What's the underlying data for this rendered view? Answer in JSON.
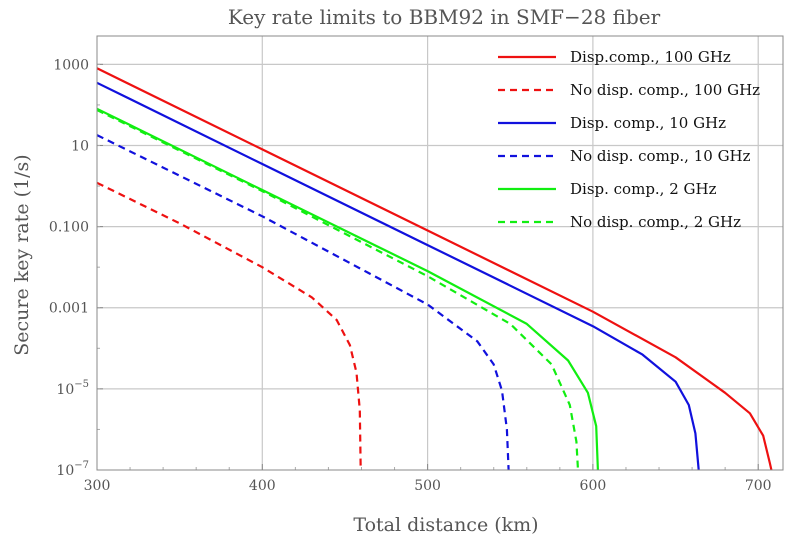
{
  "chart_data": {
    "type": "line",
    "title": "Key rate limits to BBM92 in SMF−28 fiber",
    "xlabel": "Total distance (km)",
    "ylabel": "Secure key rate (1/s)",
    "xlim": [
      300,
      715
    ],
    "ylim": [
      1e-07,
      5000
    ],
    "y_scale": "log",
    "grid": true,
    "legend_position": "top-right",
    "x_ticks": [
      {
        "value": 300,
        "label": "300"
      },
      {
        "value": 400,
        "label": "400"
      },
      {
        "value": 500,
        "label": "500"
      },
      {
        "value": 600,
        "label": "600"
      },
      {
        "value": 700,
        "label": "700"
      }
    ],
    "y_ticks": [
      {
        "value": 1000,
        "base": "1000",
        "exp": ""
      },
      {
        "value": 10,
        "base": "10",
        "exp": ""
      },
      {
        "value": 0.1,
        "base": "0.100",
        "exp": ""
      },
      {
        "value": 0.001,
        "base": "0.001",
        "exp": ""
      },
      {
        "value": 1e-05,
        "base": "10",
        "exp": "−5"
      },
      {
        "value": 1e-07,
        "base": "10",
        "exp": "−7"
      }
    ],
    "series": [
      {
        "name": "Disp.comp., 100 GHz",
        "color": "#ee1111",
        "dash": false,
        "points": [
          [
            300,
            800
          ],
          [
            400,
            8
          ],
          [
            500,
            0.08
          ],
          [
            600,
            0.0008
          ],
          [
            650,
            6e-05
          ],
          [
            680,
            8e-06
          ],
          [
            695,
            2.5e-06
          ],
          [
            703,
            7e-07
          ],
          [
            707,
            1.5e-07
          ],
          [
            708,
            1e-07
          ]
        ]
      },
      {
        "name": "No disp. comp., 100 GHz",
        "color": "#ee1111",
        "dash": true,
        "points": [
          [
            300,
            1.2
          ],
          [
            350,
            0.12
          ],
          [
            400,
            0.01
          ],
          [
            430,
            0.0018
          ],
          [
            445,
            0.0005
          ],
          [
            453,
            0.00012
          ],
          [
            457,
            2.5e-05
          ],
          [
            459,
            3e-06
          ],
          [
            459.5,
            1e-07
          ]
        ]
      },
      {
        "name": "Disp. comp., 10 GHz",
        "color": "#1111dd",
        "dash": false,
        "points": [
          [
            300,
            350
          ],
          [
            400,
            3.5
          ],
          [
            500,
            0.035
          ],
          [
            600,
            0.00035
          ],
          [
            630,
            7e-05
          ],
          [
            650,
            1.5e-05
          ],
          [
            658,
            4e-06
          ],
          [
            662,
            8e-07
          ],
          [
            664,
            1e-07
          ]
        ]
      },
      {
        "name": "No disp. comp., 10 GHz",
        "color": "#1111dd",
        "dash": true,
        "points": [
          [
            300,
            18
          ],
          [
            400,
            0.18
          ],
          [
            500,
            0.0012
          ],
          [
            530,
            0.00015
          ],
          [
            540,
            4e-05
          ],
          [
            545,
            9e-06
          ],
          [
            548,
            1e-06
          ],
          [
            549,
            1e-07
          ]
        ]
      },
      {
        "name": "Disp. comp., 2 GHz",
        "color": "#11ee11",
        "dash": false,
        "points": [
          [
            300,
            80
          ],
          [
            400,
            0.8
          ],
          [
            500,
            0.008
          ],
          [
            560,
            0.0004
          ],
          [
            585,
            5e-05
          ],
          [
            597,
            8e-06
          ],
          [
            602,
            1.2e-06
          ],
          [
            603,
            1e-07
          ]
        ]
      },
      {
        "name": "No disp. comp., 2 GHz",
        "color": "#11ee11",
        "dash": true,
        "points": [
          [
            300,
            75
          ],
          [
            400,
            0.75
          ],
          [
            500,
            0.006
          ],
          [
            550,
            0.0004
          ],
          [
            575,
            4e-05
          ],
          [
            586,
            4e-06
          ],
          [
            590,
            5e-07
          ],
          [
            591,
            1e-07
          ]
        ]
      }
    ]
  }
}
